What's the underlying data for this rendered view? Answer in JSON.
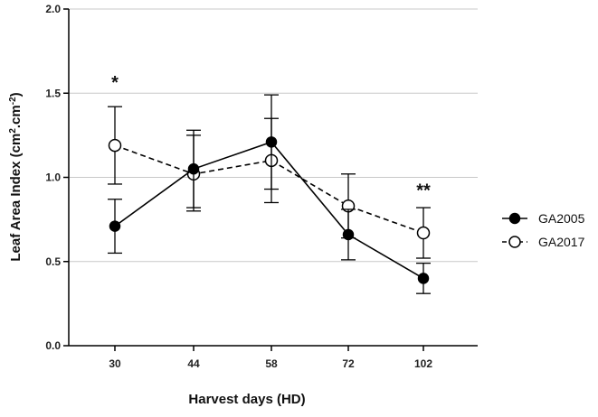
{
  "chart_data": {
    "type": "line",
    "categories": [
      "30",
      "44",
      "58",
      "72",
      "102"
    ],
    "series": [
      {
        "name": "GA2005",
        "marker": "filled-circle",
        "line": "solid",
        "values": [
          0.71,
          1.05,
          1.21,
          0.66,
          0.4
        ],
        "err_low": [
          0.55,
          0.82,
          0.93,
          0.51,
          0.31
        ],
        "err_high": [
          0.87,
          1.28,
          1.49,
          0.81,
          0.49
        ]
      },
      {
        "name": "GA2017",
        "marker": "open-circle",
        "line": "dashed",
        "values": [
          1.19,
          1.02,
          1.1,
          0.83,
          0.67
        ],
        "err_low": [
          0.96,
          0.8,
          0.85,
          0.64,
          0.52
        ],
        "err_high": [
          1.42,
          1.25,
          1.35,
          1.02,
          0.82
        ]
      }
    ],
    "xlabel": "Harvest days  (HD)",
    "ylabel_main": "Leaf Area Index (cm",
    "ylabel_sup1": "2",
    "ylabel_mid": ".cm",
    "ylabel_sup2": "-2",
    "ylabel_end": ")",
    "ylim": [
      0,
      2.0
    ],
    "yticks": [
      "0.0",
      "0.5",
      "1.0",
      "1.5",
      "2.0"
    ],
    "grid": "horizontal",
    "legend": "right",
    "annotations": [
      {
        "category": "30",
        "y": 1.57,
        "text": "*"
      },
      {
        "category": "102",
        "y": 0.93,
        "text": "**"
      }
    ],
    "colors": {
      "line": "#000000",
      "grid": "#c8c8c8"
    }
  }
}
